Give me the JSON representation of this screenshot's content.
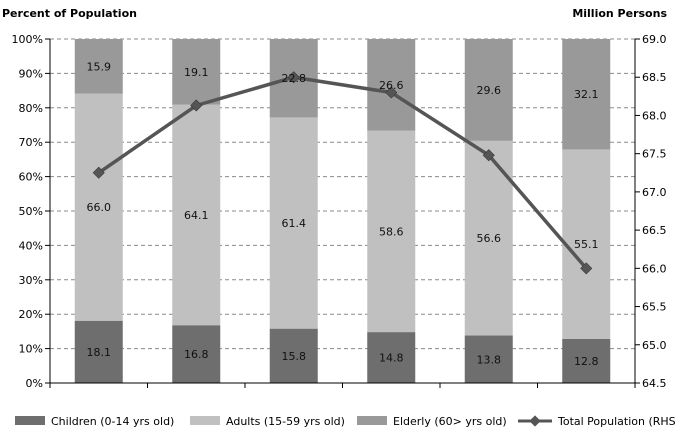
{
  "chart_data": {
    "type": "bar",
    "stacked": true,
    "percent_stacked": true,
    "ylabel_left": "Percent of Population",
    "ylabel_right": "Million Persons",
    "left_axis": {
      "ylim": [
        0,
        100
      ],
      "ticks": [
        0,
        10,
        20,
        30,
        40,
        50,
        60,
        70,
        80,
        90,
        100
      ],
      "tick_labels": [
        "0%",
        "10%",
        "20%",
        "30%",
        "40%",
        "50%",
        "60%",
        "70%",
        "80%",
        "90%",
        "100%"
      ]
    },
    "right_axis": {
      "ylim": [
        64.5,
        69.0
      ],
      "ticks": [
        64.5,
        65.0,
        65.5,
        66.0,
        66.5,
        67.0,
        67.5,
        68.0,
        68.5,
        69.0
      ],
      "tick_labels": [
        "64.5",
        "65.0",
        "65.5",
        "66.0",
        "66.5",
        "67.0",
        "67.5",
        "68.0",
        "68.5",
        "69.0"
      ]
    },
    "grid": true,
    "legend_position": "bottom",
    "categories": [
      "",
      "",
      "",
      "",
      "",
      ""
    ],
    "series": [
      {
        "name": "Children (0-14 yrs old)",
        "color": "#6e6e6e",
        "values": [
          18.1,
          16.8,
          15.8,
          14.8,
          13.8,
          12.8
        ],
        "labels": [
          "18.1",
          "16.8",
          "15.8",
          "14.8",
          "13.8",
          "12.8"
        ]
      },
      {
        "name": "Adults (15-59 yrs old)",
        "color": "#c0c0c0",
        "values": [
          66.0,
          64.1,
          61.4,
          58.6,
          56.6,
          55.1
        ],
        "labels": [
          "66.0",
          "64.1",
          "61.4",
          "58.6",
          "56.6",
          "55.1"
        ]
      },
      {
        "name": "Elderly (60> yrs old)",
        "color": "#999999",
        "values": [
          15.9,
          19.1,
          22.8,
          26.6,
          29.6,
          32.1
        ],
        "labels": [
          "15.9",
          "19.1",
          "22.8",
          "26.6",
          "29.6",
          "32.1"
        ]
      }
    ],
    "line_series": {
      "name": "Total Population (RHS)",
      "color": "#555555",
      "axis": "right",
      "values": [
        67.25,
        68.13,
        68.5,
        68.3,
        67.48,
        66.0
      ]
    }
  }
}
